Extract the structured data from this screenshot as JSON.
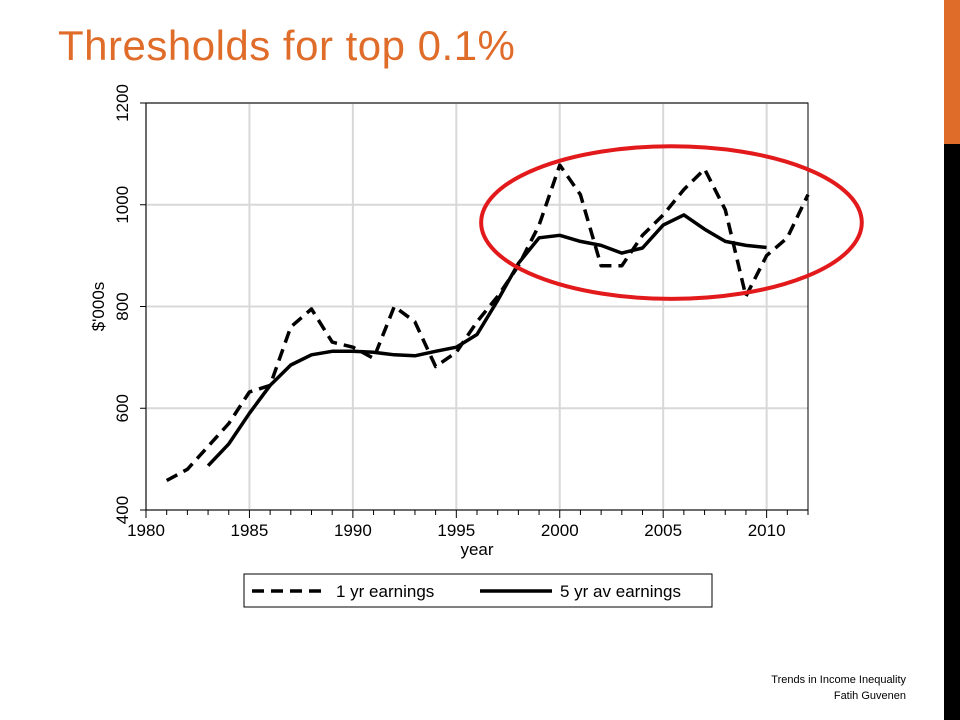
{
  "slide": {
    "title": "Thresholds for top 0.1%",
    "footer_line1": "Trends in Income Inequality",
    "footer_line2": "Fatih Guvenen",
    "accent_color": "#e06c2a"
  },
  "chart_data": {
    "type": "line",
    "title": "",
    "xlabel": "year",
    "ylabel": "$'000s",
    "xlim": [
      1980,
      2012
    ],
    "ylim": [
      400,
      1200
    ],
    "xticks": [
      1980,
      1985,
      1990,
      1995,
      2000,
      2005,
      2010
    ],
    "yticks": [
      400,
      600,
      800,
      1000,
      1200
    ],
    "grid": true,
    "legend_position": "bottom",
    "series": [
      {
        "name": "1 yr earnings",
        "style": "dashed",
        "color": "#000000",
        "x": [
          1981,
          1982,
          1983,
          1984,
          1985,
          1986,
          1987,
          1988,
          1989,
          1990,
          1991,
          1992,
          1993,
          1994,
          1995,
          1996,
          1997,
          1998,
          1999,
          2000,
          2001,
          2002,
          2003,
          2004,
          2005,
          2006,
          2007,
          2008,
          2009,
          2010,
          2011,
          2012
        ],
        "y": [
          458,
          480,
          525,
          570,
          632,
          645,
          760,
          795,
          730,
          720,
          698,
          800,
          770,
          682,
          710,
          770,
          820,
          880,
          960,
          1078,
          1020,
          880,
          880,
          940,
          980,
          1030,
          1070,
          990,
          820,
          900,
          935,
          1020
        ]
      },
      {
        "name": "5 yr av earnings",
        "style": "solid",
        "color": "#000000",
        "x": [
          1983,
          1984,
          1985,
          1986,
          1987,
          1988,
          1989,
          1990,
          1991,
          1992,
          1993,
          1994,
          1995,
          1996,
          1997,
          1998,
          1999,
          2000,
          2001,
          2002,
          2003,
          2004,
          2005,
          2006,
          2007,
          2008,
          2009,
          2010
        ],
        "y": [
          487,
          530,
          590,
          645,
          685,
          705,
          712,
          712,
          710,
          705,
          703,
          712,
          720,
          745,
          812,
          885,
          935,
          940,
          928,
          920,
          905,
          915,
          960,
          980,
          952,
          928,
          920,
          916
        ]
      }
    ],
    "annotation": {
      "shape": "ellipse",
      "color": "#e31a1c",
      "x_center": 2005.4,
      "y_center": 965,
      "x_radius": 9.2,
      "y_radius": 150
    }
  }
}
